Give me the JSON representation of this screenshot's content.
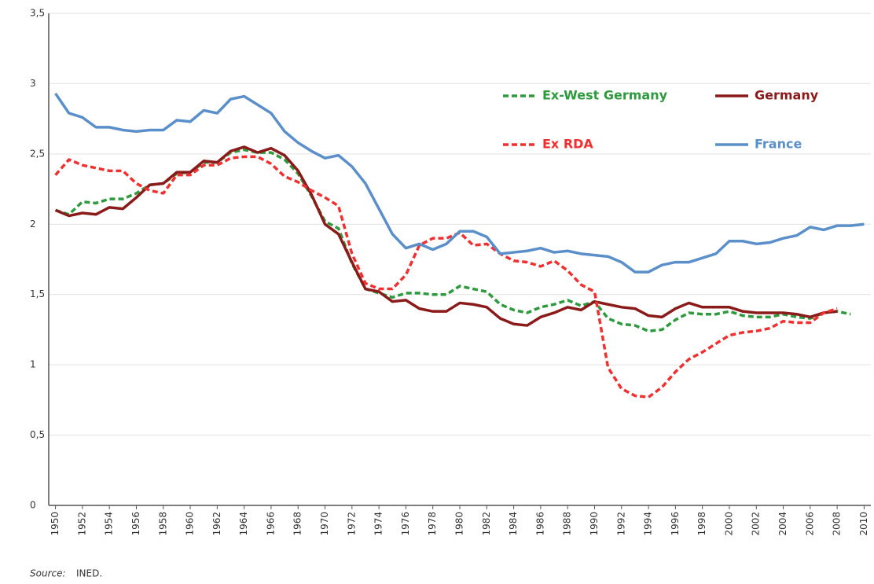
{
  "chart_data": {
    "type": "line",
    "source_label": "Source:",
    "source_text": "INED.",
    "x": [
      1950,
      1951,
      1952,
      1953,
      1954,
      1955,
      1956,
      1957,
      1958,
      1959,
      1960,
      1961,
      1962,
      1963,
      1964,
      1965,
      1966,
      1967,
      1968,
      1969,
      1970,
      1971,
      1972,
      1973,
      1974,
      1975,
      1976,
      1977,
      1978,
      1979,
      1980,
      1981,
      1982,
      1983,
      1984,
      1985,
      1986,
      1987,
      1988,
      1989,
      1990,
      1991,
      1992,
      1993,
      1994,
      1995,
      1996,
      1997,
      1998,
      1999,
      2000,
      2001,
      2002,
      2003,
      2004,
      2005,
      2006,
      2007,
      2008,
      2009,
      2010
    ],
    "xlim": [
      1949.5,
      2010.5
    ],
    "xticks": [
      1950,
      1952,
      1954,
      1956,
      1958,
      1960,
      1962,
      1964,
      1966,
      1968,
      1970,
      1972,
      1974,
      1976,
      1978,
      1980,
      1982,
      1984,
      1986,
      1988,
      1990,
      1992,
      1994,
      1996,
      1998,
      2000,
      2002,
      2004,
      2006,
      2008,
      2010
    ],
    "ylim": [
      0,
      3.5
    ],
    "yticks": [
      0,
      {
        "value": 0.5,
        "label": "0,5"
      },
      1,
      {
        "value": 1.5,
        "label": "1,5"
      },
      2,
      {
        "value": 2.5,
        "label": "2,5"
      },
      3,
      {
        "value": 3.5,
        "label": "3,5"
      }
    ],
    "grid": true,
    "series": [
      {
        "name": "Ex-West Germany",
        "color": "#2e9a3e",
        "dash": true,
        "values": [
          2.1,
          2.07,
          2.16,
          2.15,
          2.18,
          2.18,
          2.22,
          2.28,
          2.29,
          2.36,
          2.37,
          2.44,
          2.44,
          2.51,
          2.53,
          2.51,
          2.51,
          2.46,
          2.36,
          2.2,
          2.02,
          1.97,
          1.72,
          1.54,
          1.51,
          1.48,
          1.51,
          1.51,
          1.5,
          1.5,
          1.56,
          1.54,
          1.52,
          1.43,
          1.39,
          1.37,
          1.41,
          1.43,
          1.46,
          1.42,
          1.45,
          1.33,
          1.29,
          1.28,
          1.24,
          1.25,
          1.32,
          1.37,
          1.36,
          1.36,
          1.38,
          1.35,
          1.34,
          1.34,
          1.36,
          1.34,
          1.33,
          1.37,
          1.38,
          1.36,
          null
        ]
      },
      {
        "name": "Germany",
        "color": "#8b1a1a",
        "dash": false,
        "values": [
          2.1,
          2.06,
          2.08,
          2.07,
          2.12,
          2.11,
          2.19,
          2.28,
          2.29,
          2.37,
          2.37,
          2.45,
          2.44,
          2.52,
          2.55,
          2.51,
          2.54,
          2.49,
          2.38,
          2.21,
          2.0,
          1.93,
          1.73,
          1.54,
          1.52,
          1.45,
          1.46,
          1.4,
          1.38,
          1.38,
          1.44,
          1.43,
          1.41,
          1.33,
          1.29,
          1.28,
          1.34,
          1.37,
          1.41,
          1.39,
          1.45,
          1.43,
          1.41,
          1.4,
          1.35,
          1.34,
          1.4,
          1.44,
          1.41,
          1.41,
          1.41,
          1.38,
          1.37,
          1.37,
          1.37,
          1.36,
          1.34,
          1.37,
          1.38,
          null,
          null
        ]
      },
      {
        "name": "Ex RDA",
        "color": "#f03030",
        "dash": true,
        "values": [
          2.35,
          2.46,
          2.42,
          2.4,
          2.38,
          2.38,
          2.29,
          2.24,
          2.22,
          2.35,
          2.35,
          2.42,
          2.42,
          2.47,
          2.48,
          2.48,
          2.43,
          2.34,
          2.3,
          2.24,
          2.19,
          2.13,
          1.79,
          1.58,
          1.54,
          1.54,
          1.64,
          1.85,
          1.9,
          1.9,
          1.94,
          1.85,
          1.86,
          1.79,
          1.74,
          1.73,
          1.7,
          1.74,
          1.67,
          1.57,
          1.52,
          0.98,
          0.83,
          0.78,
          0.77,
          0.84,
          0.95,
          1.04,
          1.09,
          1.15,
          1.21,
          1.23,
          1.24,
          1.26,
          1.31,
          1.3,
          1.3,
          1.37,
          1.4,
          null,
          null
        ]
      },
      {
        "name": "France",
        "color": "#5b8fc9",
        "dash": false,
        "values": [
          2.93,
          2.79,
          2.76,
          2.69,
          2.69,
          2.67,
          2.66,
          2.67,
          2.67,
          2.74,
          2.73,
          2.81,
          2.79,
          2.89,
          2.91,
          2.85,
          2.79,
          2.66,
          2.58,
          2.52,
          2.47,
          2.49,
          2.41,
          2.29,
          2.11,
          1.93,
          1.83,
          1.86,
          1.82,
          1.86,
          1.95,
          1.95,
          1.91,
          1.79,
          1.8,
          1.81,
          1.83,
          1.8,
          1.81,
          1.79,
          1.78,
          1.77,
          1.73,
          1.66,
          1.66,
          1.71,
          1.73,
          1.73,
          1.76,
          1.79,
          1.88,
          1.88,
          1.86,
          1.87,
          1.9,
          1.92,
          1.98,
          1.96,
          1.99,
          1.99,
          2.0
        ]
      }
    ]
  }
}
